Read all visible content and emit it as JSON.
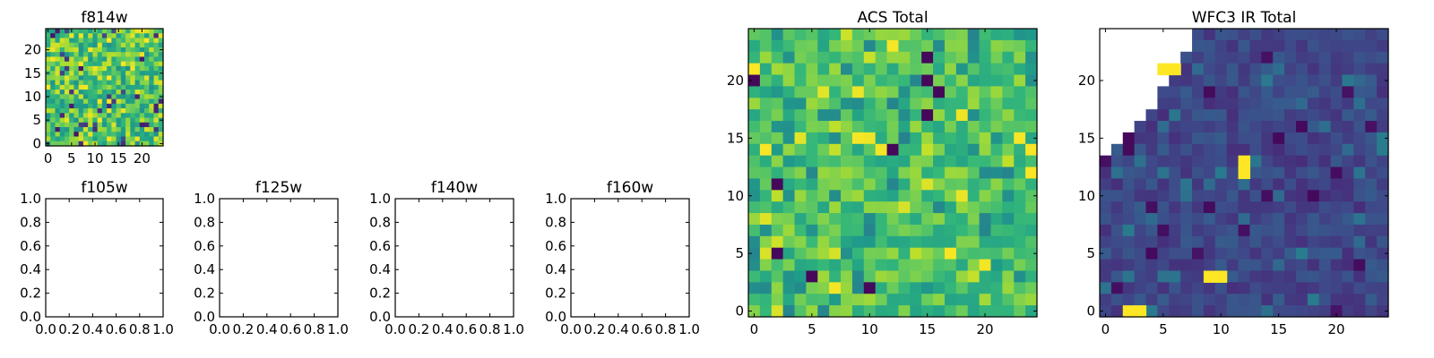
{
  "chart_data": [
    {
      "id": "f814w",
      "type": "heatmap",
      "title": "f814w",
      "colormap": "viridis",
      "grid_size": 25,
      "xlim": [
        -0.5,
        24.5
      ],
      "ylim": [
        -0.5,
        24.5
      ],
      "xticks": [
        "0",
        "5",
        "10",
        "15",
        "20"
      ],
      "yticks": [
        "0",
        "5",
        "10",
        "15",
        "20"
      ],
      "cell_value_range": [
        0.0,
        1.0
      ],
      "nan_region": "none"
    },
    {
      "id": "f105w",
      "type": "heatmap",
      "title": "f105w",
      "empty": true,
      "xlim": [
        0,
        1
      ],
      "ylim": [
        0,
        1
      ],
      "xticks": [
        "0.0",
        "0.2",
        "0.4",
        "0.6",
        "0.8",
        "1.0"
      ],
      "yticks": [
        "0.0",
        "0.2",
        "0.4",
        "0.6",
        "0.8",
        "1.0"
      ]
    },
    {
      "id": "f125w",
      "type": "heatmap",
      "title": "f125w",
      "empty": true,
      "xlim": [
        0,
        1
      ],
      "ylim": [
        0,
        1
      ],
      "xticks": [
        "0.0",
        "0.2",
        "0.4",
        "0.6",
        "0.8",
        "1.0"
      ],
      "yticks": [
        "0.0",
        "0.2",
        "0.4",
        "0.6",
        "0.8",
        "1.0"
      ]
    },
    {
      "id": "f140w",
      "type": "heatmap",
      "title": "f140w",
      "empty": true,
      "xlim": [
        0,
        1
      ],
      "ylim": [
        0,
        1
      ],
      "xticks": [
        "0.0",
        "0.2",
        "0.4",
        "0.6",
        "0.8",
        "1.0"
      ],
      "yticks": [
        "0.0",
        "0.2",
        "0.4",
        "0.6",
        "0.8",
        "1.0"
      ]
    },
    {
      "id": "f160w",
      "type": "heatmap",
      "title": "f160w",
      "empty": true,
      "xlim": [
        0,
        1
      ],
      "ylim": [
        0,
        1
      ],
      "xticks": [
        "0.0",
        "0.2",
        "0.4",
        "0.6",
        "0.8",
        "1.0"
      ],
      "yticks": [
        "0.0",
        "0.2",
        "0.4",
        "0.6",
        "0.8",
        "1.0"
      ]
    },
    {
      "id": "acs",
      "type": "heatmap",
      "title": "ACS Total",
      "colormap": "viridis",
      "grid_size": 25,
      "xlim": [
        -0.5,
        24.5
      ],
      "ylim": [
        -0.5,
        24.5
      ],
      "xticks": [
        "0",
        "5",
        "10",
        "15",
        "20"
      ],
      "yticks": [
        "0",
        "5",
        "10",
        "15",
        "20"
      ],
      "cell_value_range": [
        0.45,
        1.0
      ],
      "nan_region": "none"
    },
    {
      "id": "wfc3",
      "type": "heatmap",
      "title": "WFC3 IR Total",
      "colormap": "viridis",
      "grid_size": 25,
      "xlim": [
        -0.5,
        24.5
      ],
      "ylim": [
        -0.5,
        24.5
      ],
      "xticks": [
        "0",
        "5",
        "10",
        "15",
        "20"
      ],
      "yticks": [
        "0",
        "5",
        "10",
        "15",
        "20"
      ],
      "cell_value_range": [
        0.0,
        0.45
      ],
      "nan_region": "top-left corner (blank)",
      "highlights": [
        {
          "x": 5,
          "y": 21,
          "w": 2,
          "h": 1
        },
        {
          "x": 12,
          "y": 12,
          "w": 1,
          "h": 2
        },
        {
          "x": 2,
          "y": 0,
          "w": 2,
          "h": 1
        },
        {
          "x": 9,
          "y": 3,
          "w": 2,
          "h": 1
        }
      ]
    }
  ]
}
